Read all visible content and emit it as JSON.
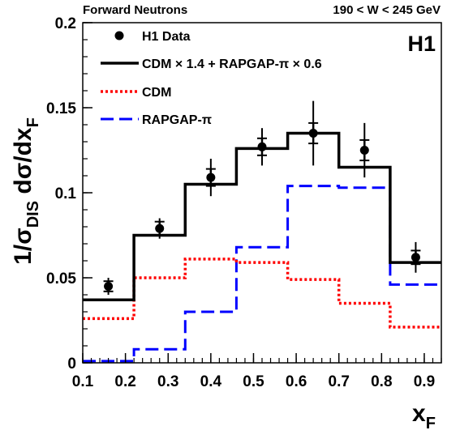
{
  "chart_data": {
    "type": "line",
    "top_left_text": "Forward Neutrons",
    "top_right_text": "190 < W < 245 GeV",
    "experiment_label": "H1",
    "xlabel": "x",
    "xlabel_sub": "F",
    "ylabel": "1/σ",
    "ylabel_sub": "DIS",
    "ylabel_mid": " dσ/dx",
    "ylabel_sub2": "F",
    "xlim": [
      0.1,
      0.94
    ],
    "ylim": [
      0,
      0.2
    ],
    "x_ticks": [
      "0.1",
      "0.2",
      "0.3",
      "0.4",
      "0.5",
      "0.6",
      "0.7",
      "0.8",
      "0.9"
    ],
    "y_ticks": [
      "0",
      "0.05",
      "0.1",
      "0.15",
      "0.2"
    ],
    "bin_edges": [
      0.1,
      0.22,
      0.34,
      0.46,
      0.58,
      0.7,
      0.82,
      0.94
    ],
    "data_points": {
      "name": "H1 Data",
      "x": [
        0.16,
        0.28,
        0.4,
        0.52,
        0.64,
        0.76,
        0.88
      ],
      "y": [
        0.045,
        0.079,
        0.109,
        0.127,
        0.135,
        0.125,
        0.062
      ],
      "stat_err": [
        0.003,
        0.004,
        0.005,
        0.005,
        0.006,
        0.006,
        0.004
      ],
      "tot_err": [
        0.005,
        0.006,
        0.011,
        0.011,
        0.019,
        0.016,
        0.009
      ]
    },
    "series": [
      {
        "name": "CDM × 1.4 + RAPGAP-π × 0.6",
        "style": "solid",
        "color": "#000000",
        "values": [
          0.037,
          0.075,
          0.105,
          0.126,
          0.135,
          0.115,
          0.059
        ]
      },
      {
        "name": "CDM",
        "style": "dotted",
        "color": "#ff0000",
        "values": [
          0.026,
          0.05,
          0.061,
          0.059,
          0.049,
          0.035,
          0.021
        ]
      },
      {
        "name": "RAPGAP-π",
        "style": "dashed",
        "color": "#0000ff",
        "values": [
          0.001,
          0.008,
          0.03,
          0.068,
          0.104,
          0.103,
          0.046
        ]
      }
    ]
  }
}
